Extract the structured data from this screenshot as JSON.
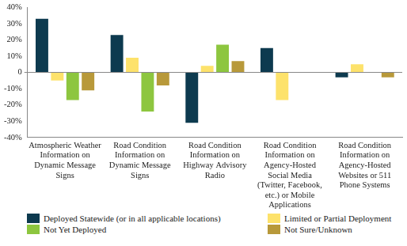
{
  "chart_data": {
    "type": "bar",
    "categories": [
      "Atmospheric Weather Information on Dynamic Message Signs",
      "Road Condition Information on Dynamic Message Signs",
      "Road Condition Information on Highway Advisory Radio",
      "Road Condition Information on Agency-Hosted Social Media (Twitter, Facebook, etc.) or Mobile Applications",
      "Road Condition Information on Agency-Hosted Websites or 511 Phone Systems"
    ],
    "series": [
      {
        "name": "Deployed Statewide (or in all applicable locations)",
        "color": "#0d3a4f",
        "values": [
          33,
          23,
          -31,
          15,
          -3
        ]
      },
      {
        "name": "Limited or Partial Deployment",
        "color": "#fde26b",
        "values": [
          -5,
          9,
          4,
          -17,
          5
        ]
      },
      {
        "name": "Not Yet Deployed",
        "color": "#8dc63f",
        "values": [
          -17,
          -24,
          17,
          0,
          0
        ]
      },
      {
        "name": "Not Sure/Unknown",
        "color": "#b8993a",
        "values": [
          -11,
          -8,
          7,
          0,
          -3
        ]
      }
    ],
    "ylim": [
      -40,
      40
    ],
    "yticks": [
      {
        "value": -40,
        "label": "-40%"
      },
      {
        "value": -30,
        "label": "-30%"
      },
      {
        "value": -20,
        "label": "-20%"
      },
      {
        "value": -10,
        "label": "-10%"
      },
      {
        "value": 0,
        "label": "0"
      },
      {
        "value": 10,
        "label": "10%"
      },
      {
        "value": 20,
        "label": "20%"
      },
      {
        "value": 30,
        "label": "30%"
      },
      {
        "value": 40,
        "label": "40%"
      }
    ],
    "grid": false,
    "legend": "bottom"
  }
}
